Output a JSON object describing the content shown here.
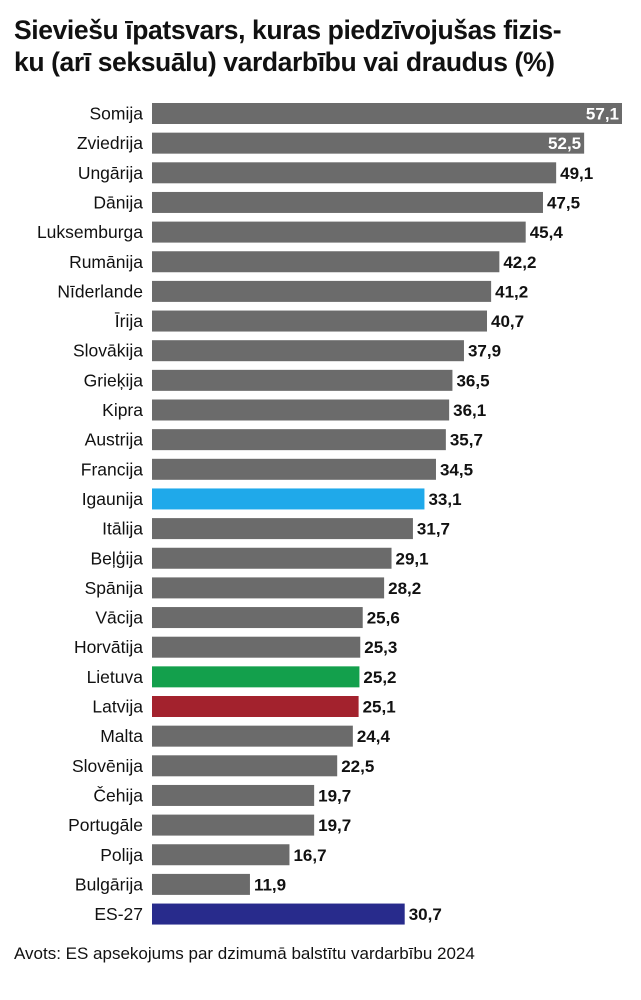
{
  "title_lines": [
    "Sieviešu īpatsvars, kuras piedzīvojušas fizis-",
    "ku (arī seksuālu) vardarbību vai draudus (%)"
  ],
  "source": "Avots: ES apsekojums par dzimumā balstītu vardarbību 2024",
  "colors": {
    "default": "#6b6b6b",
    "Igaunija": "#1fa9ea",
    "Lietuva": "#13a04c",
    "Latvija": "#a3222d",
    "ES-27": "#282b8c",
    "value_label": "#111111",
    "value_label_inside": "#ffffff"
  },
  "chart_data": {
    "type": "bar",
    "orientation": "horizontal",
    "title": "Sieviešu īpatsvars, kuras piedzīvojušas fizisku (arī seksuālu) vardarbību vai draudus (%)",
    "categories": [
      "Somija",
      "Zviedrija",
      "Ungārija",
      "Dānija",
      "Luksemburga",
      "Rumānija",
      "Nīderlande",
      "Īrija",
      "Slovākija",
      "Grieķija",
      "Kipra",
      "Austrija",
      "Francija",
      "Igaunija",
      "Itālija",
      "Beļģija",
      "Spānija",
      "Vācija",
      "Horvātija",
      "Lietuva",
      "Latvija",
      "Malta",
      "Slovēnija",
      "Čehija",
      "Portugāle",
      "Polija",
      "Bulgārija",
      "ES-27"
    ],
    "values": [
      57.1,
      52.5,
      49.1,
      47.5,
      45.4,
      42.2,
      41.2,
      40.7,
      37.9,
      36.5,
      36.1,
      35.7,
      34.5,
      33.1,
      31.7,
      29.1,
      28.2,
      25.6,
      25.3,
      25.2,
      25.1,
      24.4,
      22.5,
      19.7,
      19.7,
      16.7,
      11.9,
      30.7
    ],
    "value_labels": [
      "57,1",
      "52,5",
      "49,1",
      "47,5",
      "45,4",
      "42,2",
      "41,2",
      "40,7",
      "37,9",
      "36,5",
      "36,1",
      "35,7",
      "34,5",
      "33,1",
      "31,7",
      "29,1",
      "28,2",
      "25,6",
      "25,3",
      "25,2",
      "25,1",
      "24,4",
      "22,5",
      "19,7",
      "19,7",
      "16,7",
      "11,9",
      "30,7"
    ],
    "labels_inside": [
      "Somija",
      "Zviedrija"
    ],
    "xlim": [
      0,
      57.1
    ],
    "xlabel": "",
    "ylabel": "",
    "grid": false,
    "legend": false
  }
}
